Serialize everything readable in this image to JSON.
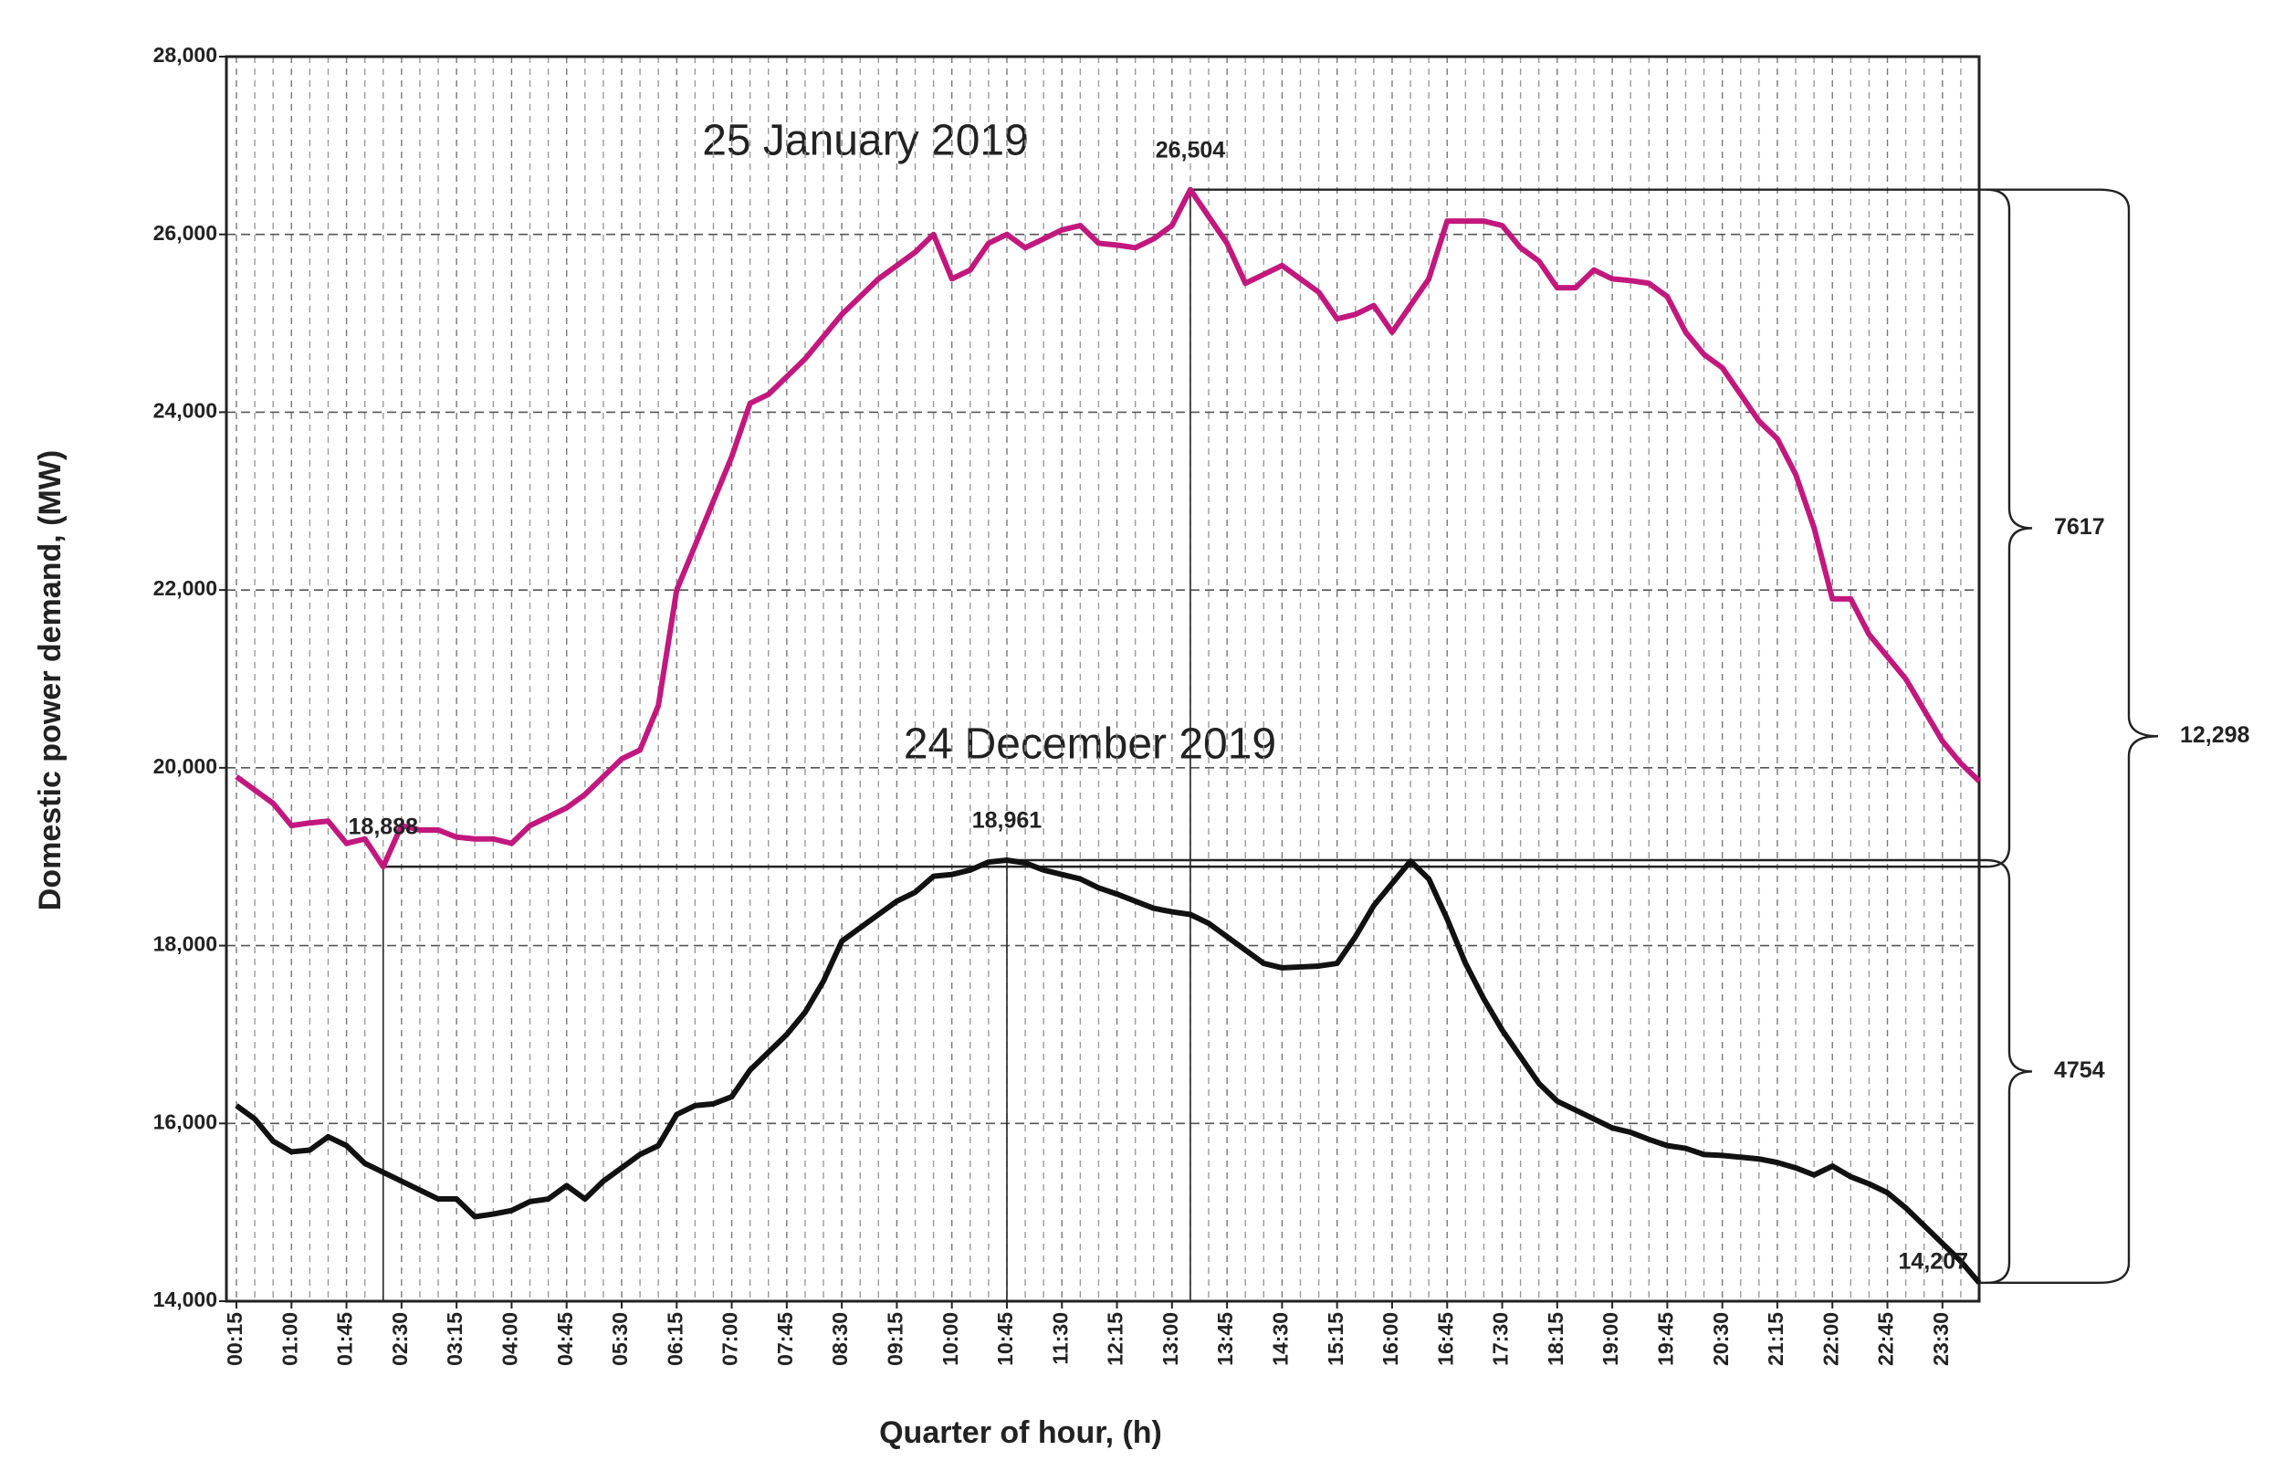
{
  "chart_data": {
    "type": "line",
    "x_label": "Quarter of hour, (h)",
    "y_label": "Domestic power demand, (MW)",
    "categories": [
      "00:15",
      null,
      null,
      "01:00",
      null,
      null,
      "01:45",
      null,
      null,
      "02:30",
      null,
      null,
      "03:15",
      null,
      null,
      "04:00",
      null,
      null,
      "04:45",
      null,
      null,
      "05:30",
      null,
      null,
      "06:15",
      null,
      null,
      "07:00",
      null,
      null,
      "07:45",
      null,
      null,
      "08:30",
      null,
      null,
      "09:15",
      null,
      null,
      "10:00",
      null,
      null,
      "10:45",
      null,
      null,
      "11:30",
      null,
      null,
      "12:15",
      null,
      null,
      "13:00",
      null,
      null,
      "13:45",
      null,
      null,
      "14:30",
      null,
      null,
      "15:15",
      null,
      null,
      "16:00",
      null,
      null,
      "16:45",
      null,
      null,
      "17:30",
      null,
      null,
      "18:15",
      null,
      null,
      "19:00",
      null,
      null,
      "19:45",
      null,
      null,
      "20:30",
      null,
      null,
      "21:15",
      null,
      null,
      "22:00",
      null,
      null,
      "22:45",
      null,
      null,
      "23:30",
      null,
      null
    ],
    "series": [
      {
        "name": "25 January 2019",
        "color": "#c2187e",
        "values": [
          19900,
          19750,
          19600,
          19350,
          19380,
          19400,
          19150,
          19200,
          18888,
          19350,
          19300,
          19300,
          19220,
          19200,
          19200,
          19150,
          19350,
          19450,
          19550,
          19700,
          19900,
          20100,
          20200,
          20700,
          22000,
          22500,
          23000,
          23500,
          24100,
          24200,
          24400,
          24600,
          24850,
          25100,
          25300,
          25500,
          25650,
          25800,
          26000,
          25500,
          25600,
          25900,
          26000,
          25850,
          25950,
          26050,
          26100,
          25900,
          25880,
          25850,
          25950,
          26100,
          26504,
          26200,
          25900,
          25450,
          25550,
          25650,
          25500,
          25350,
          25050,
          25100,
          25200,
          24900,
          25200,
          25500,
          26150,
          26150,
          26150,
          26100,
          25850,
          25700,
          25400,
          25400,
          25600,
          25500,
          25480,
          25450,
          25300,
          24900,
          24650,
          24500,
          24200,
          23900,
          23700,
          23300,
          22700,
          21900,
          21900,
          21500,
          21250,
          21000,
          20650,
          20300,
          20050,
          19850
        ],
        "value_labels": [
          null,
          null,
          null,
          null,
          null,
          null,
          null,
          null,
          "18,888",
          null,
          null,
          null,
          null,
          null,
          null,
          null,
          null,
          null,
          null,
          null,
          null,
          null,
          null,
          null,
          null,
          null,
          null,
          null,
          null,
          null,
          null,
          null,
          null,
          null,
          null,
          null,
          null,
          null,
          null,
          null,
          null,
          null,
          null,
          null,
          null,
          null,
          null,
          null,
          null,
          null,
          null,
          null,
          "26,504",
          null,
          null,
          null,
          null,
          null,
          null,
          null,
          null,
          null,
          null,
          null,
          null,
          null,
          null,
          null,
          null,
          null,
          null,
          null,
          null,
          null,
          null,
          null,
          null,
          null,
          null,
          null,
          null,
          null,
          null,
          null,
          null,
          null,
          null,
          null,
          null,
          null,
          null,
          null,
          null,
          null,
          null,
          null
        ]
      },
      {
        "name": "24 December 2019",
        "color": "#111111",
        "values": [
          16200,
          16050,
          15800,
          15680,
          15700,
          15850,
          15750,
          15550,
          15450,
          15350,
          15250,
          15150,
          15150,
          14950,
          14980,
          15020,
          15120,
          15150,
          15300,
          15150,
          15350,
          15500,
          15650,
          15750,
          16100,
          16200,
          16220,
          16300,
          16600,
          16800,
          17000,
          17250,
          17600,
          18050,
          18200,
          18350,
          18500,
          18600,
          18780,
          18800,
          18850,
          18940,
          18961,
          18930,
          18850,
          18800,
          18750,
          18650,
          18580,
          18500,
          18420,
          18380,
          18350,
          18250,
          18100,
          17950,
          17800,
          17750,
          17760,
          17770,
          17800,
          18100,
          18450,
          18700,
          18950,
          18750,
          18300,
          17800,
          17400,
          17050,
          16750,
          16450,
          16250,
          16150,
          16050,
          15950,
          15900,
          15820,
          15750,
          15720,
          15650,
          15640,
          15620,
          15600,
          15560,
          15500,
          15420,
          15520,
          15400,
          15320,
          15220,
          15050,
          14850,
          14650,
          14450,
          14207
        ],
        "value_labels": [
          null,
          null,
          null,
          null,
          null,
          null,
          null,
          null,
          null,
          null,
          null,
          null,
          null,
          null,
          null,
          null,
          null,
          null,
          null,
          null,
          null,
          null,
          null,
          null,
          null,
          null,
          null,
          null,
          null,
          null,
          null,
          null,
          null,
          null,
          null,
          null,
          null,
          null,
          null,
          null,
          null,
          null,
          "18,961",
          null,
          null,
          null,
          null,
          null,
          null,
          null,
          null,
          null,
          null,
          null,
          null,
          null,
          null,
          null,
          null,
          null,
          null,
          null,
          null,
          null,
          null,
          null,
          null,
          null,
          null,
          null,
          null,
          null,
          null,
          null,
          null,
          null,
          null,
          null,
          null,
          null,
          null,
          null,
          null,
          null,
          null,
          null,
          null,
          null,
          null,
          null,
          null,
          null,
          null,
          null,
          null,
          "14,207"
        ]
      }
    ],
    "annotations": [
      "7617",
      "4754",
      "12,298"
    ],
    "ylim": [
      14000,
      28000
    ],
    "yticks": [
      {
        "value": 14000,
        "label": "14,000"
      },
      {
        "value": 16000,
        "label": "16,000"
      },
      {
        "value": 18000,
        "label": "18,000"
      },
      {
        "value": 20000,
        "label": "20,000"
      },
      {
        "value": 22000,
        "label": "22,000"
      },
      {
        "value": 24000,
        "label": "24,000"
      },
      {
        "value": 26000,
        "label": "26,000"
      },
      {
        "value": 28000,
        "label": "28,000"
      }
    ],
    "grid": true
  }
}
